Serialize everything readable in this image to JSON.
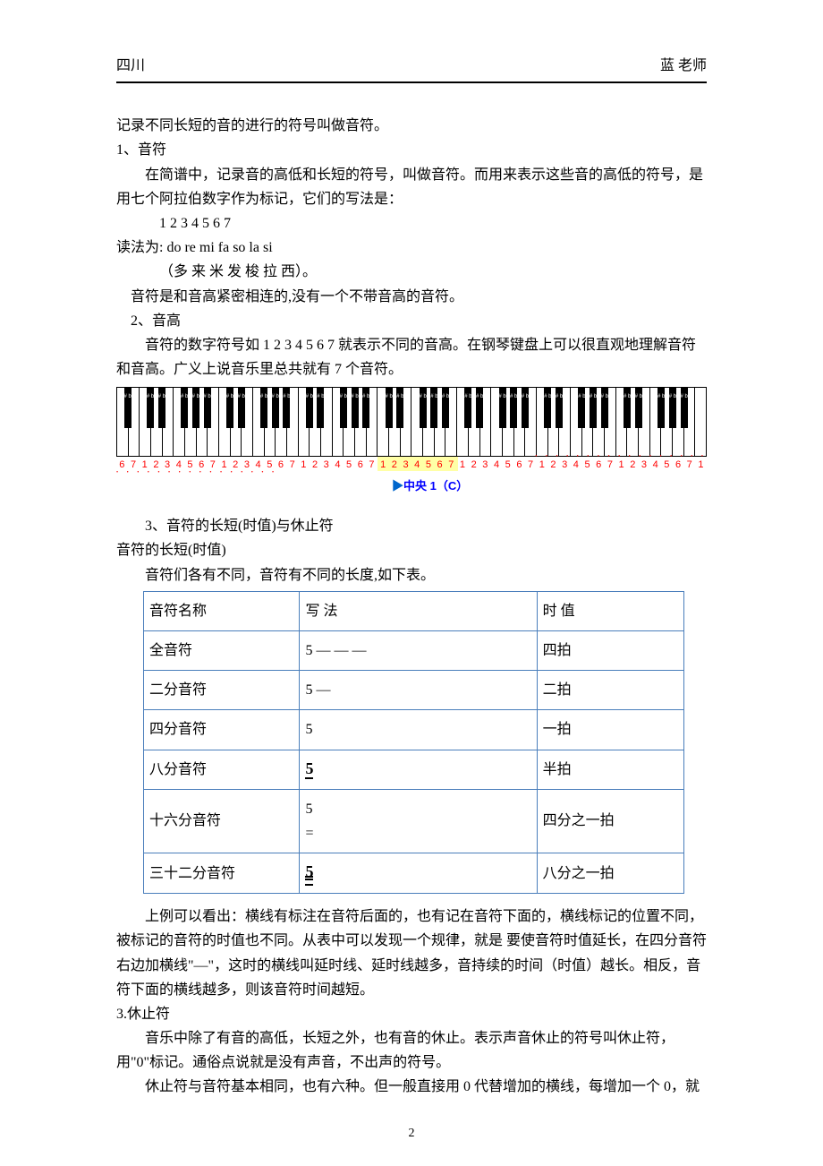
{
  "header": {
    "left": "四川",
    "right": "蓝 老师"
  },
  "intro": {
    "line0": "记录不同长短的音的进行的符号叫做音符。",
    "sec1": "1、音符",
    "p1a": "在简谱中，记录音的高低和长短的符号，叫做音符。而用来表示这些音的高低的符号，是用七个阿拉伯数字作为标记，它们的写法是：",
    "nums": "1 2 3 4 5 6 7",
    "read_label": "读法为: do re mi fa so la si",
    "read_cn": "（多 来 米 发  梭 拉 西）。",
    "p1b": "音符是和音高紧密相连的,没有一个不带音高的音符。",
    "sec2": "2、音高",
    "p2": "音符的数字符号如 1 2 3 4 5 6 7 就表示不同的音高。在钢琴键盘上可以很直观地理解音符和音高。广义上说音乐里总共就有 7 个音符。"
  },
  "keyboard": {
    "center_label": "中央 1（C）",
    "white_count": 52,
    "seq": [
      "6",
      "7",
      "1",
      "2",
      "3",
      "4",
      "5",
      "6",
      "7",
      "1",
      "2",
      "3",
      "4",
      "5",
      "6",
      "7",
      "1",
      "2",
      "3",
      "4",
      "5",
      "6",
      "7",
      "1",
      "2",
      "3",
      "4",
      "5",
      "6",
      "7",
      "1",
      "2",
      "3",
      "4",
      "5",
      "6",
      "7",
      "1",
      "2",
      "3",
      "4",
      "5",
      "6",
      "7",
      "1",
      "2",
      "3",
      "4",
      "5",
      "6",
      "7",
      "1"
    ],
    "red": "#ff0000",
    "blue": "#0000ff",
    "yellow_bg": "rgba(255,255,0,0.35)"
  },
  "section3": {
    "title": "3、音符的长短(时值)与休止符",
    "sub1": "音符的长短(时值)",
    "lead": "音符们各有不同，音符有不同的长度,如下表。"
  },
  "table": {
    "headers": [
      "音符名称",
      "写 法",
      "时 值"
    ],
    "rows": [
      {
        "name": "全音符",
        "notation": "5 — — —",
        "value": "四拍"
      },
      {
        "name": "二分音符",
        "notation": "5 —",
        "value": "二拍"
      },
      {
        "name": "四分音符",
        "notation": "5",
        "value": "一拍"
      },
      {
        "name": "八分音符",
        "notation": "5_",
        "value": "半拍"
      },
      {
        "name": "十六分音符",
        "notation": "5\n=",
        "value": "四分之一拍"
      },
      {
        "name": "三十二分音符",
        "notation": "5___",
        "value": "八分之一拍"
      }
    ]
  },
  "after_table": {
    "p1": "上例可以看出：横线有标注在音符后面的，也有记在音符下面的，横线标记的位置不同，被标记的音符的时值也不同。从表中可以发现一个规律，就是 要使音符时值延长，在四分音符右边加横线\"—\"，这时的横线叫延时线、延时线越多，音持续的时间（时值）越长。相反，音符下面的横线越多，则该音符时间越短。"
  },
  "rest": {
    "title": "3.休止符",
    "p1": "音乐中除了有音的高低，长短之外，也有音的休止。表示声音休止的符号叫休止符，用\"0\"标记。通俗点说就是没有声音，不出声的符号。",
    "p2": "休止符与音符基本相同，也有六种。但一般直接用 0 代替增加的横线，每增加一个 0，就"
  },
  "page_number": "2"
}
